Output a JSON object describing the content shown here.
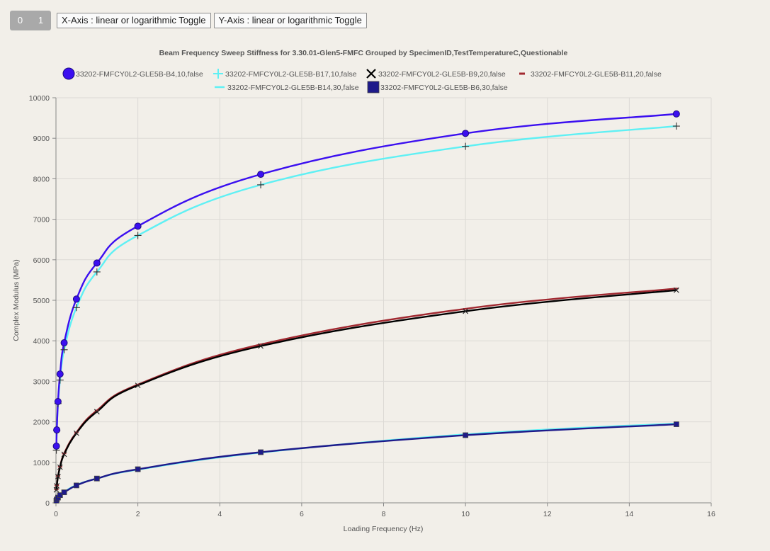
{
  "toolbar": {
    "segment_0": "0",
    "segment_1": "1",
    "x_toggle_label": "X-Axis : linear or logarithmic Toggle",
    "y_toggle_label": "Y-Axis : linear or logarithmic Toggle"
  },
  "chart_data": {
    "type": "line",
    "title": "Beam Frequency Sweep Stiffness for 3.30.01-Glen5-FMFC Grouped by SpecimenID,TestTemperatureC,Questionable",
    "xlabel": "Loading Frequency (Hz)",
    "ylabel": "Complex Modulus (MPa)",
    "xlim": [
      0,
      16
    ],
    "ylim": [
      0,
      10000
    ],
    "x_ticks": [
      "0",
      "2",
      "4",
      "6",
      "8",
      "10",
      "12",
      "14",
      "16"
    ],
    "y_ticks": [
      "0",
      "1000",
      "2000",
      "3000",
      "4000",
      "5000",
      "6000",
      "7000",
      "8000",
      "9000",
      "10000"
    ],
    "grid": true,
    "legend_position": "top",
    "series": [
      {
        "name": "33202-FMFCY0L2-GLE5B-B4,10,false",
        "color": "#3b0ff0",
        "marker": "circle",
        "points": [
          [
            0.01,
            1400
          ],
          [
            0.02,
            1800
          ],
          [
            0.05,
            2500
          ],
          [
            0.1,
            3180
          ],
          [
            0.2,
            3950
          ],
          [
            0.5,
            5030
          ],
          [
            1,
            5920
          ],
          [
            2,
            6830
          ],
          [
            5,
            8110
          ],
          [
            10,
            9120
          ],
          [
            15.15,
            9600
          ]
        ]
      },
      {
        "name": "33202-FMFCY0L2-GLE5B-B17,10,false",
        "color": "#5ff0f4",
        "marker": "plus",
        "points": [
          [
            0.01,
            1300
          ],
          [
            0.02,
            1780
          ],
          [
            0.05,
            2450
          ],
          [
            0.1,
            3030
          ],
          [
            0.2,
            3780
          ],
          [
            0.5,
            4820
          ],
          [
            1,
            5700
          ],
          [
            2,
            6600
          ],
          [
            5,
            7850
          ],
          [
            10,
            8800
          ],
          [
            15.15,
            9300
          ]
        ]
      },
      {
        "name": "33202-FMFCY0L2-GLE5B-B9,20,false",
        "color": "#000000",
        "marker": "cross",
        "points": [
          [
            0.01,
            320
          ],
          [
            0.02,
            420
          ],
          [
            0.05,
            650
          ],
          [
            0.1,
            880
          ],
          [
            0.2,
            1200
          ],
          [
            0.5,
            1720
          ],
          [
            1,
            2250
          ],
          [
            2,
            2900
          ],
          [
            5,
            3870
          ],
          [
            10,
            4730
          ],
          [
            15.15,
            5250
          ]
        ]
      },
      {
        "name": "33202-FMFCY0L2-GLE5B-B11,20,false",
        "color": "#a12830",
        "marker": "dash",
        "points": [
          [
            0.01,
            330
          ],
          [
            0.02,
            430
          ],
          [
            0.05,
            660
          ],
          [
            0.1,
            890
          ],
          [
            0.2,
            1220
          ],
          [
            0.5,
            1740
          ],
          [
            1,
            2280
          ],
          [
            2,
            2920
          ],
          [
            5,
            3910
          ],
          [
            10,
            4790
          ],
          [
            15.15,
            5290
          ]
        ]
      },
      {
        "name": "33202-FMFCY0L2-GLE5B-B14,30,false",
        "color": "#5ff0f4",
        "marker": "none",
        "points": [
          [
            0.01,
            60
          ],
          [
            0.02,
            90
          ],
          [
            0.05,
            140
          ],
          [
            0.1,
            200
          ],
          [
            0.2,
            270
          ],
          [
            0.5,
            440
          ],
          [
            1,
            600
          ],
          [
            2,
            820
          ],
          [
            5,
            1240
          ],
          [
            10,
            1690
          ],
          [
            15.15,
            1960
          ]
        ]
      },
      {
        "name": "33202-FMFCY0L2-GLE5B-B6,30,false",
        "color": "#1e1a8a",
        "marker": "square",
        "points": [
          [
            0.01,
            55
          ],
          [
            0.02,
            85
          ],
          [
            0.05,
            130
          ],
          [
            0.1,
            190
          ],
          [
            0.2,
            260
          ],
          [
            0.5,
            430
          ],
          [
            1,
            600
          ],
          [
            2,
            830
          ],
          [
            5,
            1250
          ],
          [
            10,
            1670
          ],
          [
            15.15,
            1940
          ]
        ]
      }
    ]
  }
}
